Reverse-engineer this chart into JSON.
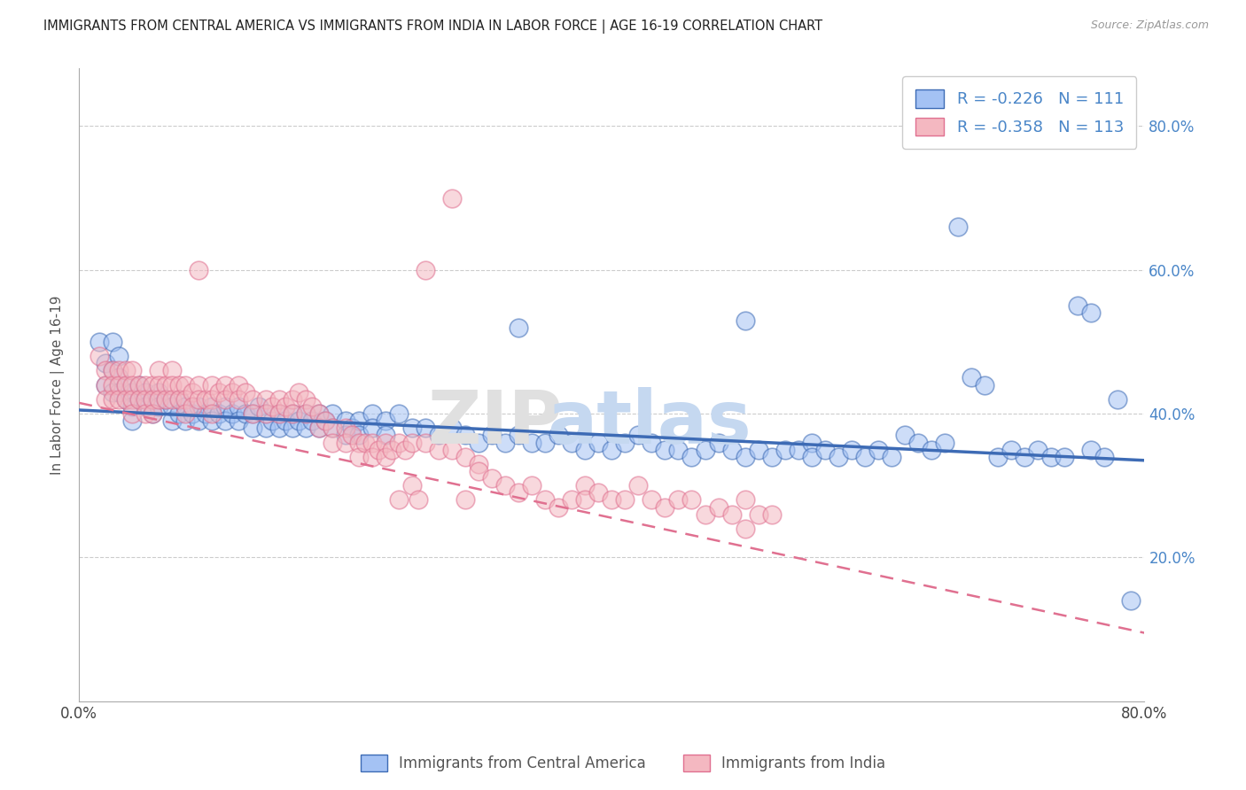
{
  "title": "IMMIGRANTS FROM CENTRAL AMERICA VS IMMIGRANTS FROM INDIA IN LABOR FORCE | AGE 16-19 CORRELATION CHART",
  "source": "Source: ZipAtlas.com",
  "ylabel": "In Labor Force | Age 16-19",
  "x_min": 0.0,
  "x_max": 0.8,
  "y_min": 0.0,
  "y_max": 0.88,
  "x_tick_positions": [
    0.0,
    0.2,
    0.4,
    0.6,
    0.8
  ],
  "x_tick_labels": [
    "0.0%",
    "",
    "",
    "",
    "80.0%"
  ],
  "y_tick_labels_right": [
    "20.0%",
    "40.0%",
    "60.0%",
    "80.0%"
  ],
  "y_tick_vals_right": [
    0.2,
    0.4,
    0.6,
    0.8
  ],
  "color_blue": "#a4c2f4",
  "color_pink": "#f4b8c1",
  "color_line_blue": "#3d6bb5",
  "color_line_pink": "#e07090",
  "color_right_axis": "#4a86c8",
  "color_grid": "#cccccc",
  "watermark_zip_color": "#e0e0e0",
  "watermark_atlas_color": "#c5d8f0",
  "label_central": "Immigrants from Central America",
  "label_india": "Immigrants from India",
  "trend_blue_y_start": 0.405,
  "trend_blue_y_end": 0.335,
  "trend_pink_y_start": 0.415,
  "trend_pink_y_end": 0.095,
  "scatter_blue": [
    [
      0.015,
      0.5
    ],
    [
      0.02,
      0.47
    ],
    [
      0.02,
      0.44
    ],
    [
      0.025,
      0.46
    ],
    [
      0.025,
      0.43
    ],
    [
      0.025,
      0.5
    ],
    [
      0.03,
      0.45
    ],
    [
      0.03,
      0.43
    ],
    [
      0.03,
      0.48
    ],
    [
      0.035,
      0.44
    ],
    [
      0.035,
      0.42
    ],
    [
      0.04,
      0.43
    ],
    [
      0.04,
      0.41
    ],
    [
      0.04,
      0.39
    ],
    [
      0.045,
      0.44
    ],
    [
      0.045,
      0.42
    ],
    [
      0.05,
      0.43
    ],
    [
      0.05,
      0.41
    ],
    [
      0.055,
      0.42
    ],
    [
      0.055,
      0.4
    ],
    [
      0.06,
      0.43
    ],
    [
      0.06,
      0.41
    ],
    [
      0.065,
      0.42
    ],
    [
      0.07,
      0.41
    ],
    [
      0.07,
      0.39
    ],
    [
      0.075,
      0.42
    ],
    [
      0.075,
      0.4
    ],
    [
      0.08,
      0.41
    ],
    [
      0.08,
      0.39
    ],
    [
      0.085,
      0.4
    ],
    [
      0.09,
      0.41
    ],
    [
      0.09,
      0.39
    ],
    [
      0.095,
      0.4
    ],
    [
      0.1,
      0.41
    ],
    [
      0.1,
      0.39
    ],
    [
      0.105,
      0.4
    ],
    [
      0.11,
      0.41
    ],
    [
      0.11,
      0.39
    ],
    [
      0.115,
      0.4
    ],
    [
      0.12,
      0.41
    ],
    [
      0.12,
      0.39
    ],
    [
      0.125,
      0.4
    ],
    [
      0.13,
      0.4
    ],
    [
      0.13,
      0.38
    ],
    [
      0.135,
      0.41
    ],
    [
      0.14,
      0.4
    ],
    [
      0.14,
      0.38
    ],
    [
      0.145,
      0.39
    ],
    [
      0.15,
      0.4
    ],
    [
      0.15,
      0.38
    ],
    [
      0.155,
      0.39
    ],
    [
      0.16,
      0.4
    ],
    [
      0.16,
      0.38
    ],
    [
      0.165,
      0.39
    ],
    [
      0.17,
      0.4
    ],
    [
      0.17,
      0.38
    ],
    [
      0.175,
      0.39
    ],
    [
      0.18,
      0.4
    ],
    [
      0.18,
      0.38
    ],
    [
      0.185,
      0.39
    ],
    [
      0.19,
      0.4
    ],
    [
      0.19,
      0.38
    ],
    [
      0.2,
      0.39
    ],
    [
      0.2,
      0.37
    ],
    [
      0.205,
      0.38
    ],
    [
      0.21,
      0.39
    ],
    [
      0.21,
      0.37
    ],
    [
      0.22,
      0.4
    ],
    [
      0.22,
      0.38
    ],
    [
      0.23,
      0.39
    ],
    [
      0.23,
      0.37
    ],
    [
      0.24,
      0.4
    ],
    [
      0.25,
      0.38
    ],
    [
      0.26,
      0.38
    ],
    [
      0.27,
      0.37
    ],
    [
      0.28,
      0.38
    ],
    [
      0.29,
      0.37
    ],
    [
      0.3,
      0.36
    ],
    [
      0.31,
      0.37
    ],
    [
      0.32,
      0.36
    ],
    [
      0.33,
      0.37
    ],
    [
      0.33,
      0.52
    ],
    [
      0.34,
      0.36
    ],
    [
      0.35,
      0.36
    ],
    [
      0.36,
      0.37
    ],
    [
      0.37,
      0.36
    ],
    [
      0.38,
      0.35
    ],
    [
      0.39,
      0.36
    ],
    [
      0.4,
      0.35
    ],
    [
      0.41,
      0.36
    ],
    [
      0.42,
      0.37
    ],
    [
      0.43,
      0.36
    ],
    [
      0.44,
      0.35
    ],
    [
      0.45,
      0.35
    ],
    [
      0.46,
      0.34
    ],
    [
      0.47,
      0.35
    ],
    [
      0.48,
      0.36
    ],
    [
      0.49,
      0.35
    ],
    [
      0.5,
      0.34
    ],
    [
      0.5,
      0.53
    ],
    [
      0.51,
      0.35
    ],
    [
      0.52,
      0.34
    ],
    [
      0.53,
      0.35
    ],
    [
      0.54,
      0.35
    ],
    [
      0.55,
      0.36
    ],
    [
      0.55,
      0.34
    ],
    [
      0.56,
      0.35
    ],
    [
      0.57,
      0.34
    ],
    [
      0.58,
      0.35
    ],
    [
      0.59,
      0.34
    ],
    [
      0.6,
      0.35
    ],
    [
      0.61,
      0.34
    ],
    [
      0.62,
      0.37
    ],
    [
      0.63,
      0.36
    ],
    [
      0.64,
      0.35
    ],
    [
      0.65,
      0.36
    ],
    [
      0.66,
      0.66
    ],
    [
      0.67,
      0.45
    ],
    [
      0.68,
      0.44
    ],
    [
      0.69,
      0.34
    ],
    [
      0.7,
      0.35
    ],
    [
      0.71,
      0.34
    ],
    [
      0.72,
      0.35
    ],
    [
      0.73,
      0.34
    ],
    [
      0.74,
      0.34
    ],
    [
      0.75,
      0.55
    ],
    [
      0.76,
      0.54
    ],
    [
      0.76,
      0.35
    ],
    [
      0.77,
      0.34
    ],
    [
      0.78,
      0.42
    ],
    [
      0.79,
      0.14
    ]
  ],
  "scatter_pink": [
    [
      0.015,
      0.48
    ],
    [
      0.02,
      0.46
    ],
    [
      0.02,
      0.44
    ],
    [
      0.02,
      0.42
    ],
    [
      0.025,
      0.46
    ],
    [
      0.025,
      0.44
    ],
    [
      0.025,
      0.42
    ],
    [
      0.03,
      0.46
    ],
    [
      0.03,
      0.44
    ],
    [
      0.03,
      0.42
    ],
    [
      0.035,
      0.46
    ],
    [
      0.035,
      0.44
    ],
    [
      0.035,
      0.42
    ],
    [
      0.04,
      0.46
    ],
    [
      0.04,
      0.44
    ],
    [
      0.04,
      0.42
    ],
    [
      0.04,
      0.4
    ],
    [
      0.045,
      0.44
    ],
    [
      0.045,
      0.42
    ],
    [
      0.05,
      0.44
    ],
    [
      0.05,
      0.42
    ],
    [
      0.05,
      0.4
    ],
    [
      0.055,
      0.44
    ],
    [
      0.055,
      0.42
    ],
    [
      0.055,
      0.4
    ],
    [
      0.06,
      0.46
    ],
    [
      0.06,
      0.44
    ],
    [
      0.06,
      0.42
    ],
    [
      0.065,
      0.44
    ],
    [
      0.065,
      0.42
    ],
    [
      0.07,
      0.46
    ],
    [
      0.07,
      0.44
    ],
    [
      0.07,
      0.42
    ],
    [
      0.075,
      0.44
    ],
    [
      0.075,
      0.42
    ],
    [
      0.08,
      0.44
    ],
    [
      0.08,
      0.42
    ],
    [
      0.08,
      0.4
    ],
    [
      0.085,
      0.43
    ],
    [
      0.085,
      0.41
    ],
    [
      0.09,
      0.44
    ],
    [
      0.09,
      0.42
    ],
    [
      0.09,
      0.6
    ],
    [
      0.095,
      0.42
    ],
    [
      0.1,
      0.44
    ],
    [
      0.1,
      0.42
    ],
    [
      0.1,
      0.4
    ],
    [
      0.105,
      0.43
    ],
    [
      0.11,
      0.44
    ],
    [
      0.11,
      0.42
    ],
    [
      0.115,
      0.43
    ],
    [
      0.12,
      0.44
    ],
    [
      0.12,
      0.42
    ],
    [
      0.125,
      0.43
    ],
    [
      0.13,
      0.42
    ],
    [
      0.13,
      0.4
    ],
    [
      0.14,
      0.42
    ],
    [
      0.14,
      0.4
    ],
    [
      0.145,
      0.41
    ],
    [
      0.15,
      0.42
    ],
    [
      0.15,
      0.4
    ],
    [
      0.155,
      0.41
    ],
    [
      0.16,
      0.42
    ],
    [
      0.16,
      0.4
    ],
    [
      0.165,
      0.43
    ],
    [
      0.17,
      0.42
    ],
    [
      0.17,
      0.4
    ],
    [
      0.175,
      0.41
    ],
    [
      0.18,
      0.4
    ],
    [
      0.18,
      0.38
    ],
    [
      0.185,
      0.39
    ],
    [
      0.19,
      0.38
    ],
    [
      0.19,
      0.36
    ],
    [
      0.2,
      0.38
    ],
    [
      0.2,
      0.36
    ],
    [
      0.205,
      0.37
    ],
    [
      0.21,
      0.36
    ],
    [
      0.21,
      0.34
    ],
    [
      0.215,
      0.36
    ],
    [
      0.22,
      0.36
    ],
    [
      0.22,
      0.34
    ],
    [
      0.225,
      0.35
    ],
    [
      0.23,
      0.36
    ],
    [
      0.23,
      0.34
    ],
    [
      0.235,
      0.35
    ],
    [
      0.24,
      0.36
    ],
    [
      0.24,
      0.28
    ],
    [
      0.245,
      0.35
    ],
    [
      0.25,
      0.36
    ],
    [
      0.25,
      0.3
    ],
    [
      0.255,
      0.28
    ],
    [
      0.26,
      0.6
    ],
    [
      0.26,
      0.36
    ],
    [
      0.27,
      0.35
    ],
    [
      0.28,
      0.7
    ],
    [
      0.28,
      0.35
    ],
    [
      0.29,
      0.34
    ],
    [
      0.29,
      0.28
    ],
    [
      0.3,
      0.33
    ],
    [
      0.3,
      0.32
    ],
    [
      0.31,
      0.31
    ],
    [
      0.32,
      0.3
    ],
    [
      0.33,
      0.29
    ],
    [
      0.34,
      0.3
    ],
    [
      0.35,
      0.28
    ],
    [
      0.36,
      0.27
    ],
    [
      0.37,
      0.28
    ],
    [
      0.38,
      0.3
    ],
    [
      0.38,
      0.28
    ],
    [
      0.39,
      0.29
    ],
    [
      0.4,
      0.28
    ],
    [
      0.41,
      0.28
    ],
    [
      0.42,
      0.3
    ],
    [
      0.43,
      0.28
    ],
    [
      0.44,
      0.27
    ],
    [
      0.45,
      0.28
    ],
    [
      0.46,
      0.28
    ],
    [
      0.47,
      0.26
    ],
    [
      0.48,
      0.27
    ],
    [
      0.49,
      0.26
    ],
    [
      0.5,
      0.28
    ],
    [
      0.5,
      0.24
    ],
    [
      0.51,
      0.26
    ],
    [
      0.52,
      0.26
    ]
  ]
}
